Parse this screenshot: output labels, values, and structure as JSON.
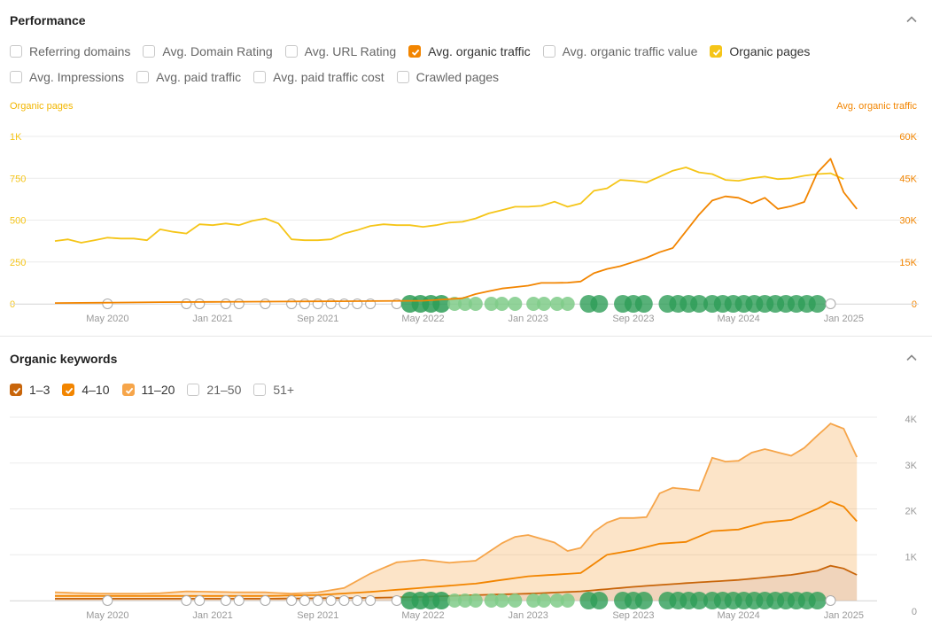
{
  "performance": {
    "title": "Performance",
    "checkboxes_row1": [
      {
        "label": "Referring domains",
        "checked": false,
        "color": ""
      },
      {
        "label": "Avg. Domain Rating",
        "checked": false,
        "color": ""
      },
      {
        "label": "Avg. URL Rating",
        "checked": false,
        "color": ""
      },
      {
        "label": "Avg. organic traffic",
        "checked": true,
        "color": "#f28500"
      },
      {
        "label": "Avg. organic traffic value",
        "checked": false,
        "color": ""
      },
      {
        "label": "Organic pages",
        "checked": true,
        "color": "#f5c518"
      }
    ],
    "checkboxes_row2": [
      {
        "label": "Avg. Impressions",
        "checked": false,
        "color": ""
      },
      {
        "label": "Avg. paid traffic",
        "checked": false,
        "color": ""
      },
      {
        "label": "Avg. paid traffic cost",
        "checked": false,
        "color": ""
      },
      {
        "label": "Crawled pages",
        "checked": false,
        "color": ""
      }
    ]
  },
  "organic_keywords": {
    "title": "Organic keywords",
    "checkboxes": [
      {
        "label": "1–3",
        "checked": true,
        "color": "#c8650a"
      },
      {
        "label": "4–10",
        "checked": true,
        "color": "#f28500"
      },
      {
        "label": "11–20",
        "checked": true,
        "color": "#f6a54a"
      },
      {
        "label": "21–50",
        "checked": false,
        "color": ""
      },
      {
        "label": "51+",
        "checked": false,
        "color": ""
      }
    ]
  },
  "colors": {
    "organic_pages": "#f5c518",
    "organic_traffic": "#f28500",
    "kw_1_3": "#c8650a",
    "kw_4_10": "#f28500",
    "kw_11_20": "#f6a54a",
    "grid": "#ebebeb",
    "axis_text": "#999999",
    "annotation_green": "#2e9e57",
    "annotation_light": "#7fcb88"
  },
  "chart_data": [
    {
      "type": "line",
      "title": "",
      "y_left_label": "Organic pages",
      "y_right_label": "Avg. organic traffic",
      "x_tick_labels": [
        "May 2020",
        "Jan 2021",
        "Sep 2021",
        "May 2022",
        "Jan 2023",
        "Sep 2023",
        "May 2024",
        "Jan 2025"
      ],
      "x_tick_months": [
        4,
        12,
        20,
        28,
        36,
        44,
        52,
        60
      ],
      "y_left_ticks": [
        "0",
        "250",
        "500",
        "750",
        "1K"
      ],
      "y_left_tick_values": [
        0,
        250,
        500,
        750,
        1000
      ],
      "y_right_ticks": [
        "0",
        "15K",
        "30K",
        "45K",
        "60K"
      ],
      "y_right_tick_values": [
        0,
        15000,
        30000,
        45000,
        60000
      ],
      "x_range": [
        0,
        62
      ],
      "y_left_range": [
        0,
        1000
      ],
      "y_right_range": [
        0,
        60000
      ],
      "grid": true,
      "series": [
        {
          "name": "Organic pages",
          "axis": "left",
          "points": [
            [
              0,
              375
            ],
            [
              1,
              385
            ],
            [
              2,
              365
            ],
            [
              3,
              380
            ],
            [
              4,
              395
            ],
            [
              5,
              390
            ],
            [
              6,
              390
            ],
            [
              7,
              380
            ],
            [
              8,
              445
            ],
            [
              9,
              430
            ],
            [
              10,
              420
            ],
            [
              11,
              475
            ],
            [
              12,
              470
            ],
            [
              13,
              480
            ],
            [
              14,
              470
            ],
            [
              15,
              495
            ],
            [
              16,
              510
            ],
            [
              17,
              480
            ],
            [
              18,
              385
            ],
            [
              19,
              380
            ],
            [
              20,
              380
            ],
            [
              21,
              385
            ],
            [
              22,
              420
            ],
            [
              23,
              440
            ],
            [
              24,
              465
            ],
            [
              25,
              475
            ],
            [
              26,
              470
            ],
            [
              27,
              470
            ],
            [
              28,
              460
            ],
            [
              29,
              470
            ],
            [
              30,
              485
            ],
            [
              31,
              490
            ],
            [
              32,
              510
            ],
            [
              33,
              540
            ],
            [
              34,
              560
            ],
            [
              35,
              580
            ],
            [
              36,
              580
            ],
            [
              37,
              585
            ],
            [
              38,
              610
            ],
            [
              39,
              580
            ],
            [
              40,
              600
            ],
            [
              41,
              675
            ],
            [
              42,
              690
            ],
            [
              43,
              740
            ],
            [
              44,
              735
            ],
            [
              45,
              725
            ],
            [
              46,
              760
            ],
            [
              47,
              795
            ],
            [
              48,
              815
            ],
            [
              49,
              785
            ],
            [
              50,
              775
            ],
            [
              51,
              740
            ],
            [
              52,
              735
            ],
            [
              53,
              750
            ],
            [
              54,
              760
            ],
            [
              55,
              745
            ],
            [
              56,
              750
            ],
            [
              57,
              765
            ],
            [
              58,
              775
            ],
            [
              59,
              780
            ],
            [
              60,
              745
            ]
          ]
        },
        {
          "name": "Avg. organic traffic",
          "axis": "right",
          "points": [
            [
              0,
              300
            ],
            [
              4,
              400
            ],
            [
              8,
              600
            ],
            [
              12,
              700
            ],
            [
              16,
              800
            ],
            [
              20,
              900
            ],
            [
              24,
              1000
            ],
            [
              28,
              1100
            ],
            [
              31,
              2000
            ],
            [
              32,
              3500
            ],
            [
              33,
              4500
            ],
            [
              34,
              5500
            ],
            [
              35,
              6000
            ],
            [
              36,
              6500
            ],
            [
              37,
              7500
            ],
            [
              38,
              7500
            ],
            [
              39,
              7600
            ],
            [
              40,
              8000
            ],
            [
              41,
              11000
            ],
            [
              42,
              12500
            ],
            [
              43,
              13500
            ],
            [
              44,
              15000
            ],
            [
              45,
              16500
            ],
            [
              46,
              18500
            ],
            [
              47,
              20000
            ],
            [
              48,
              26000
            ],
            [
              49,
              32000
            ],
            [
              50,
              37000
            ],
            [
              51,
              38500
            ],
            [
              52,
              38000
            ],
            [
              53,
              36000
            ],
            [
              54,
              38000
            ],
            [
              55,
              34000
            ],
            [
              56,
              35000
            ],
            [
              57,
              36500
            ],
            [
              58,
              47000
            ],
            [
              59,
              52000
            ],
            [
              60,
              40000
            ],
            [
              61,
              34000
            ]
          ]
        }
      ]
    },
    {
      "type": "area",
      "title": "",
      "x_tick_labels": [
        "May 2020",
        "Jan 2021",
        "Sep 2021",
        "May 2022",
        "Jan 2023",
        "Sep 2023",
        "May 2024",
        "Jan 2025"
      ],
      "x_tick_months": [
        4,
        12,
        20,
        28,
        36,
        44,
        52,
        60
      ],
      "y_ticks": [
        "0",
        "1K",
        "2K",
        "3K",
        "4K"
      ],
      "y_tick_values": [
        0,
        1000,
        2000,
        3000,
        4000
      ],
      "x_range": [
        0,
        62
      ],
      "y_range": [
        0,
        4000
      ],
      "stacked": true,
      "grid": true,
      "series": [
        {
          "name": "1–3",
          "points": [
            [
              0,
              40
            ],
            [
              4,
              40
            ],
            [
              8,
              40
            ],
            [
              12,
              40
            ],
            [
              16,
              40
            ],
            [
              20,
              50
            ],
            [
              24,
              60
            ],
            [
              28,
              80
            ],
            [
              32,
              120
            ],
            [
              36,
              150
            ],
            [
              40,
              200
            ],
            [
              44,
              300
            ],
            [
              48,
              380
            ],
            [
              52,
              450
            ],
            [
              56,
              560
            ],
            [
              58,
              650
            ],
            [
              59,
              760
            ],
            [
              60,
              700
            ],
            [
              61,
              560
            ]
          ]
        },
        {
          "name": "4–10",
          "points": [
            [
              0,
              60
            ],
            [
              4,
              60
            ],
            [
              8,
              60
            ],
            [
              12,
              60
            ],
            [
              16,
              60
            ],
            [
              20,
              70
            ],
            [
              24,
              130
            ],
            [
              28,
              200
            ],
            [
              32,
              250
            ],
            [
              36,
              380
            ],
            [
              40,
              400
            ],
            [
              42,
              750
            ],
            [
              44,
              800
            ],
            [
              46,
              900
            ],
            [
              48,
              900
            ],
            [
              50,
              1100
            ],
            [
              52,
              1100
            ],
            [
              54,
              1200
            ],
            [
              56,
              1200
            ],
            [
              58,
              1350
            ],
            [
              59,
              1400
            ],
            [
              60,
              1350
            ],
            [
              61,
              1170
            ]
          ]
        },
        {
          "name": "11–20",
          "points": [
            [
              0,
              80
            ],
            [
              2,
              60
            ],
            [
              4,
              50
            ],
            [
              6,
              50
            ],
            [
              8,
              60
            ],
            [
              10,
              100
            ],
            [
              12,
              90
            ],
            [
              14,
              80
            ],
            [
              16,
              80
            ],
            [
              18,
              40
            ],
            [
              20,
              60
            ],
            [
              22,
              120
            ],
            [
              24,
              400
            ],
            [
              26,
              600
            ],
            [
              28,
              610
            ],
            [
              30,
              500
            ],
            [
              32,
              500
            ],
            [
              34,
              800
            ],
            [
              35,
              900
            ],
            [
              36,
              900
            ],
            [
              37,
              800
            ],
            [
              38,
              700
            ],
            [
              39,
              500
            ],
            [
              40,
              550
            ],
            [
              41,
              700
            ],
            [
              42,
              700
            ],
            [
              43,
              750
            ],
            [
              44,
              700
            ],
            [
              45,
              650
            ],
            [
              46,
              1100
            ],
            [
              47,
              1200
            ],
            [
              48,
              1150
            ],
            [
              49,
              1000
            ],
            [
              50,
              1600
            ],
            [
              51,
              1500
            ],
            [
              52,
              1500
            ],
            [
              53,
              1600
            ],
            [
              54,
              1600
            ],
            [
              55,
              1500
            ],
            [
              56,
              1400
            ],
            [
              57,
              1450
            ],
            [
              58,
              1600
            ],
            [
              59,
              1700
            ],
            [
              60,
              1700
            ],
            [
              61,
              1400
            ]
          ]
        }
      ]
    }
  ]
}
